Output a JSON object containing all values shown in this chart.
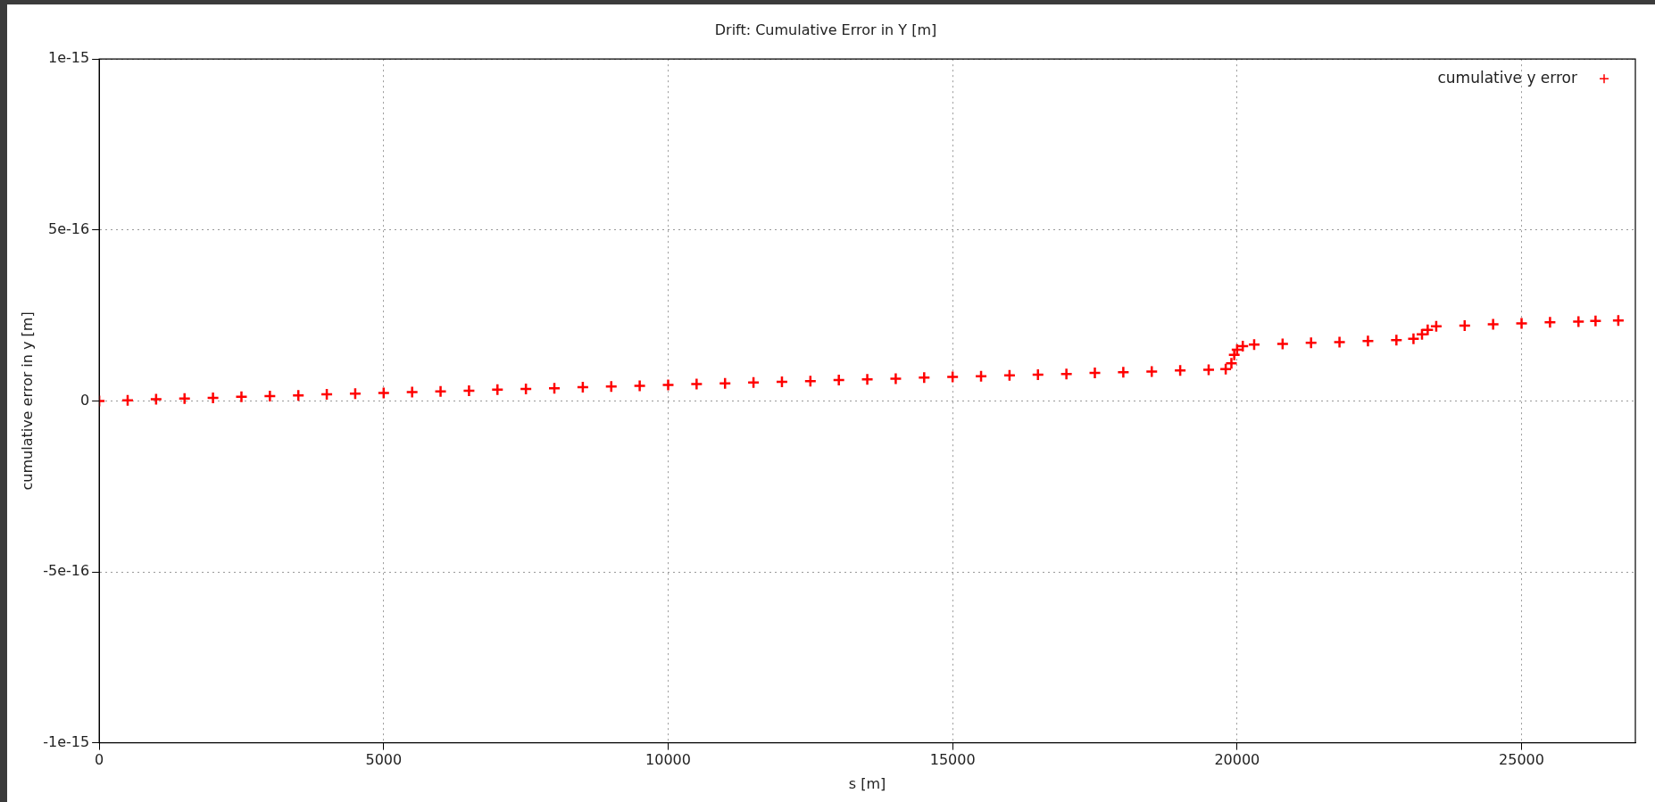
{
  "chart_data": {
    "type": "scatter",
    "title": "Drift: Cumulative Error in Y [m]",
    "xlabel": "s [m]",
    "ylabel": "cumulative error in y [m]",
    "x": [
      0,
      500,
      1000,
      1500,
      2000,
      2500,
      3000,
      3500,
      4000,
      4500,
      5000,
      5500,
      6000,
      6500,
      7000,
      7500,
      8000,
      8500,
      9000,
      9500,
      10000,
      10500,
      11000,
      11500,
      12000,
      12500,
      13000,
      13500,
      14000,
      14500,
      15000,
      15500,
      16000,
      16500,
      17000,
      17500,
      18000,
      18500,
      19000,
      19500,
      19800,
      19900,
      19950,
      20000,
      20100,
      20300,
      20800,
      21300,
      21800,
      22300,
      22800,
      23100,
      23250,
      23350,
      23500,
      24000,
      24500,
      25000,
      25500,
      26000,
      26300,
      26700
    ],
    "series": [
      {
        "name": "cumulative y error",
        "color": "#ff0000",
        "values": [
          0,
          2e-18,
          5e-18,
          7e-18,
          9e-18,
          1.2e-17,
          1.4e-17,
          1.6e-17,
          1.9e-17,
          2.1e-17,
          2.3e-17,
          2.6e-17,
          2.8e-17,
          3e-17,
          3.3e-17,
          3.5e-17,
          3.7e-17,
          4e-17,
          4.2e-17,
          4.4e-17,
          4.7e-17,
          4.9e-17,
          5.1e-17,
          5.4e-17,
          5.6e-17,
          5.8e-17,
          6.1e-17,
          6.3e-17,
          6.5e-17,
          6.8e-17,
          7e-17,
          7.2e-17,
          7.5e-17,
          7.7e-17,
          7.9e-17,
          8.2e-17,
          8.4e-17,
          8.6e-17,
          8.9e-17,
          9.1e-17,
          9.3e-17,
          1.1e-16,
          1.35e-16,
          1.5e-16,
          1.6e-16,
          1.65e-16,
          1.67e-16,
          1.7e-16,
          1.72e-16,
          1.75e-16,
          1.78e-16,
          1.82e-16,
          1.95e-16,
          2.08e-16,
          2.18e-16,
          2.2e-16,
          2.24e-16,
          2.27e-16,
          2.3e-16,
          2.32e-16,
          2.34e-16,
          2.35e-16
        ]
      }
    ],
    "xlim": [
      0,
      27000
    ],
    "xticks": [
      0,
      5000,
      10000,
      15000,
      20000,
      25000
    ],
    "ylim": [
      -1e-15,
      1e-15
    ],
    "yticks": [
      -1e-15,
      -5e-16,
      0,
      5e-16,
      1e-15
    ],
    "grid": true,
    "legend": "top right",
    "marker": "cross"
  }
}
